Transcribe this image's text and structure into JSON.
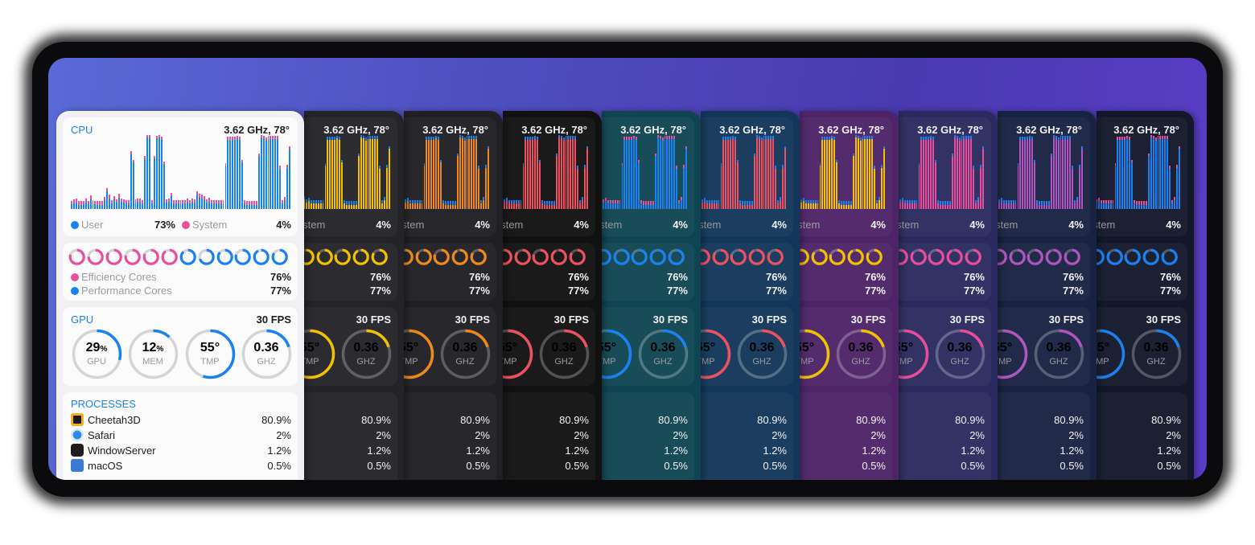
{
  "cpu": {
    "title": "CPU",
    "freq_temp": "3.62 GHz, 78°",
    "user_label": "User",
    "user_value": "73%",
    "system_label": "System",
    "system_label_clipped": "rstem",
    "system_value": "4%"
  },
  "cores": {
    "efficiency_label": "Efficiency Cores",
    "efficiency_value": "76%",
    "performance_label": "Performance Cores",
    "performance_value": "77%",
    "efficiency_count": 6,
    "performance_count": 6
  },
  "gpu": {
    "title": "GPU",
    "fps": "30 FPS",
    "gauges": [
      {
        "value": "29",
        "unit": "%",
        "label": "GPU",
        "fraction": 0.29
      },
      {
        "value": "12",
        "unit": "%",
        "label": "MEM",
        "fraction": 0.12
      },
      {
        "value": "55°",
        "unit": "",
        "label": "TMP",
        "fraction": 0.55
      },
      {
        "value": "0.36",
        "unit": "",
        "label": "GHZ",
        "fraction": 0.2
      }
    ],
    "clipped_tmp_value": "5°",
    "clipped_tmp_label": "MP"
  },
  "processes": {
    "title": "PROCESSES",
    "items": [
      {
        "name": "Cheetah3D",
        "value": "80.9%",
        "icon": "cheetah3d-icon"
      },
      {
        "name": "Safari",
        "value": "2%",
        "icon": "safari-icon"
      },
      {
        "name": "WindowServer",
        "value": "1.2%",
        "icon": "window-server-icon"
      },
      {
        "name": "macOS",
        "value": "0.5%",
        "icon": "macos-icon"
      }
    ]
  },
  "themes": [
    {
      "name": "light",
      "bg": "#f1f1f3",
      "user": "#1a82f0",
      "system": "#e84f9c"
    },
    {
      "name": "dark-yellow",
      "bg": "#242428",
      "user": "#f2c200",
      "system": "#1a82f0"
    },
    {
      "name": "dark-orange",
      "bg": "#202024",
      "user": "#ee8a1c",
      "system": "#1a82f0"
    },
    {
      "name": "black-red",
      "bg": "#111112",
      "user": "#ef5060",
      "system": "#1a82f0"
    },
    {
      "name": "teal-blue",
      "bg": "#0f4552",
      "user": "#1a82f0",
      "system": "#e84f9c"
    },
    {
      "name": "navy-red",
      "bg": "#12375a",
      "user": "#ef5060",
      "system": "#1a82f0"
    },
    {
      "name": "purple-yellow",
      "bg": "#4e2468",
      "user": "#f2c200",
      "system": "#1a82f0"
    },
    {
      "name": "indigo-pink",
      "bg": "#2a2a5e",
      "user": "#ea4c9c",
      "system": "#1a82f0"
    },
    {
      "name": "midnight-violet",
      "bg": "#182242",
      "user": "#b055c0",
      "system": "#1a82f0"
    },
    {
      "name": "darknavy-blue",
      "bg": "#12182a",
      "user": "#1a82f0",
      "system": "#e84f9c"
    }
  ],
  "chart_data": {
    "type": "bar",
    "title": "CPU",
    "series": [
      {
        "name": "User",
        "values": [
          7,
          9,
          9,
          6,
          6,
          7,
          10,
          7,
          13,
          8,
          7,
          6,
          6,
          6,
          12,
          24,
          15,
          8,
          13,
          9,
          16,
          10,
          9,
          8,
          8,
          76,
          64,
          9,
          10,
          10,
          8,
          70,
          99,
          99,
          8,
          70,
          98,
          99,
          96,
          62,
          9,
          10,
          18,
          8,
          8,
          8,
          8,
          8,
          8,
          10,
          8,
          10,
          9,
          20,
          16,
          15,
          13,
          9,
          11,
          8,
          8,
          8,
          8,
          8,
          8,
          60,
          96,
          96,
          96,
          96,
          98,
          96,
          64,
          8,
          6,
          6,
          6,
          6,
          6,
          73,
          99,
          98,
          95,
          97,
          97,
          97,
          97,
          97,
          56,
          8,
          12,
          57,
          83
        ]
      },
      {
        "name": "System",
        "values": [
          3,
          3,
          4,
          3,
          3,
          3,
          3,
          3,
          4,
          3,
          3,
          3,
          3,
          3,
          3,
          3,
          3,
          3,
          3,
          3,
          3,
          3,
          3,
          3,
          3,
          2,
          2,
          3,
          3,
          3,
          3,
          2,
          2,
          2,
          3,
          2,
          2,
          2,
          2,
          2,
          3,
          3,
          3,
          3,
          3,
          3,
          3,
          3,
          3,
          3,
          3,
          3,
          3,
          3,
          3,
          3,
          3,
          3,
          3,
          3,
          3,
          3,
          3,
          3,
          3,
          2,
          2,
          2,
          2,
          2,
          2,
          2,
          2,
          3,
          3,
          3,
          3,
          3,
          3,
          2,
          2,
          2,
          2,
          2,
          2,
          2,
          2,
          2,
          2,
          3,
          3,
          2,
          2
        ]
      }
    ],
    "legend": [
      "User 73%",
      "System 4%"
    ],
    "ylim": [
      0,
      100
    ]
  }
}
